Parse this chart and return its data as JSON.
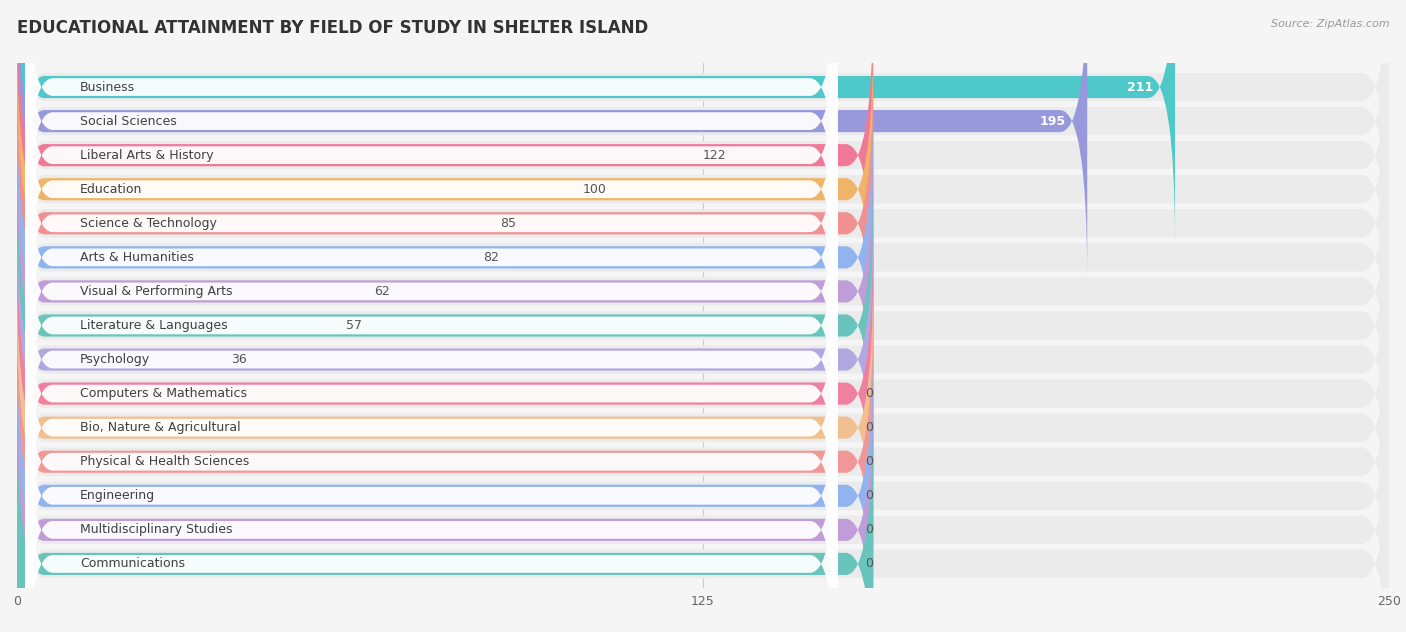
{
  "title": "EDUCATIONAL ATTAINMENT BY FIELD OF STUDY IN SHELTER ISLAND",
  "source": "Source: ZipAtlas.com",
  "categories": [
    "Business",
    "Social Sciences",
    "Liberal Arts & History",
    "Education",
    "Science & Technology",
    "Arts & Humanities",
    "Visual & Performing Arts",
    "Literature & Languages",
    "Psychology",
    "Computers & Mathematics",
    "Bio, Nature & Agricultural",
    "Physical & Health Sciences",
    "Engineering",
    "Multidisciplinary Studies",
    "Communications"
  ],
  "values": [
    211,
    195,
    122,
    100,
    85,
    82,
    62,
    57,
    36,
    0,
    0,
    0,
    0,
    0,
    0
  ],
  "bar_colors": [
    "#4ec8c8",
    "#9898dc",
    "#f07898",
    "#f0b468",
    "#f09090",
    "#90b4f0",
    "#c09cd8",
    "#68c4bc",
    "#b0a8e0",
    "#f080a0",
    "#f0c090",
    "#f09898",
    "#90b4f0",
    "#c09cd8",
    "#68c4bc"
  ],
  "xlim": [
    0,
    250
  ],
  "xticks": [
    0,
    125,
    250
  ],
  "background_color": "#f5f5f5",
  "row_bg_color": "#ebebeb",
  "title_fontsize": 12,
  "label_fontsize": 9,
  "value_fontsize": 9
}
